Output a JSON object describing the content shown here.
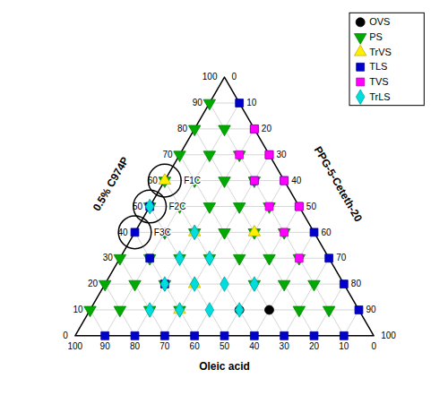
{
  "chart_data": {
    "type": "ternary",
    "title": "",
    "xlabel": "Oleic acid",
    "ylabel": "0.5% C974P",
    "y2label": "PPG-5-Ceteth-20",
    "xlim": [
      0,
      100
    ],
    "ylim": [
      0,
      100
    ],
    "y2lim": [
      0,
      100
    ],
    "xticks": [
      0,
      10,
      20,
      30,
      40,
      50,
      60,
      70,
      80,
      90,
      100
    ],
    "yticks": [
      0,
      10,
      20,
      30,
      40,
      50,
      60,
      70,
      80,
      90,
      100
    ],
    "y2ticks": [
      0,
      10,
      20,
      30,
      40,
      50,
      60,
      70,
      80,
      90,
      100
    ],
    "grid": true,
    "legend": "upper right",
    "series": [
      {
        "name": "OVS",
        "marker": "circle",
        "color": "#000000",
        "values": [
          [
            30,
            10,
            60
          ],
          [
            40,
            10,
            50
          ]
        ]
      },
      {
        "name": "PS",
        "marker": "triangle_down",
        "color": "#00aa00",
        "values": [
          [
            10,
            10,
            80
          ],
          [
            20,
            10,
            70
          ],
          [
            10,
            20,
            70
          ],
          [
            20,
            20,
            60
          ],
          [
            30,
            20,
            50
          ],
          [
            10,
            30,
            60
          ],
          [
            20,
            30,
            50
          ],
          [
            30,
            30,
            40
          ],
          [
            40,
            30,
            30
          ],
          [
            10,
            40,
            50
          ],
          [
            20,
            40,
            40
          ],
          [
            30,
            40,
            30
          ],
          [
            40,
            40,
            20
          ],
          [
            50,
            40,
            10
          ],
          [
            50,
            30,
            20
          ],
          [
            60,
            30,
            10
          ],
          [
            10,
            50,
            40
          ],
          [
            20,
            50,
            30
          ],
          [
            30,
            50,
            20
          ],
          [
            40,
            50,
            10
          ],
          [
            50,
            50,
            0
          ],
          [
            10,
            60,
            30
          ],
          [
            20,
            60,
            20
          ],
          [
            30,
            60,
            10
          ],
          [
            40,
            60,
            0
          ],
          [
            10,
            70,
            20
          ],
          [
            20,
            70,
            10
          ],
          [
            30,
            70,
            0
          ],
          [
            10,
            80,
            10
          ],
          [
            20,
            80,
            0
          ],
          [
            10,
            90,
            0
          ],
          [
            70,
            20,
            10
          ],
          [
            60,
            20,
            20
          ],
          [
            70,
            10,
            20
          ],
          [
            80,
            10,
            10
          ],
          [
            60,
            10,
            30
          ],
          [
            80,
            20,
            0
          ],
          [
            90,
            10,
            0
          ],
          [
            70,
            30,
            0
          ]
        ]
      },
      {
        "name": "TrVS",
        "marker": "triangle_up",
        "color": "#ffee00",
        "values": [
          [
            20,
            40,
            40
          ],
          [
            40,
            40,
            20
          ],
          [
            40,
            60,
            0
          ],
          [
            50,
            20,
            30
          ],
          [
            60,
            10,
            30
          ]
        ]
      },
      {
        "name": "TLS",
        "marker": "square",
        "color": "#0000cc",
        "values": [
          [
            10,
            0,
            90
          ],
          [
            80,
            0,
            20
          ],
          [
            20,
            0,
            80
          ],
          [
            70,
            0,
            30
          ],
          [
            60,
            0,
            40
          ],
          [
            50,
            0,
            50
          ],
          [
            40,
            0,
            60
          ],
          [
            30,
            0,
            70
          ],
          [
            90,
            0,
            10
          ],
          [
            0,
            10,
            90
          ],
          [
            0,
            20,
            80
          ],
          [
            0,
            30,
            70
          ],
          [
            0,
            40,
            60
          ],
          [
            0,
            50,
            50
          ],
          [
            0,
            60,
            40
          ],
          [
            0,
            70,
            30
          ],
          [
            0,
            80,
            20
          ],
          [
            0,
            90,
            10
          ],
          [
            10,
            60,
            30
          ],
          [
            50,
            50,
            0
          ],
          [
            60,
            40,
            0
          ],
          [
            60,
            30,
            10
          ],
          [
            50,
            40,
            10
          ],
          [
            60,
            20,
            20
          ]
        ]
      },
      {
        "name": "TVS",
        "marker": "square",
        "color": "#ff00ff",
        "values": [
          [
            0,
            50,
            50
          ],
          [
            0,
            60,
            40
          ],
          [
            0,
            70,
            30
          ],
          [
            0,
            80,
            20
          ],
          [
            10,
            30,
            60
          ],
          [
            10,
            40,
            50
          ],
          [
            10,
            50,
            40
          ],
          [
            10,
            60,
            30
          ],
          [
            10,
            70,
            20
          ]
        ]
      },
      {
        "name": "TrLS",
        "marker": "diamond",
        "color": "#00dddd",
        "values": [
          [
            40,
            10,
            50
          ],
          [
            30,
            20,
            50
          ],
          [
            50,
            10,
            40
          ],
          [
            40,
            20,
            40
          ],
          [
            50,
            20,
            30
          ],
          [
            40,
            30,
            30
          ],
          [
            60,
            10,
            30
          ],
          [
            50,
            30,
            20
          ],
          [
            40,
            40,
            20
          ],
          [
            60,
            20,
            20
          ],
          [
            50,
            50,
            0
          ],
          [
            70,
            10,
            20
          ]
        ]
      }
    ],
    "annotations": [
      {
        "text": "F1C",
        "values": [
          40,
          60,
          0
        ]
      },
      {
        "text": "F2C",
        "values": [
          50,
          50,
          0
        ]
      },
      {
        "text": "F3C",
        "values": [
          60,
          40,
          0
        ]
      }
    ]
  }
}
